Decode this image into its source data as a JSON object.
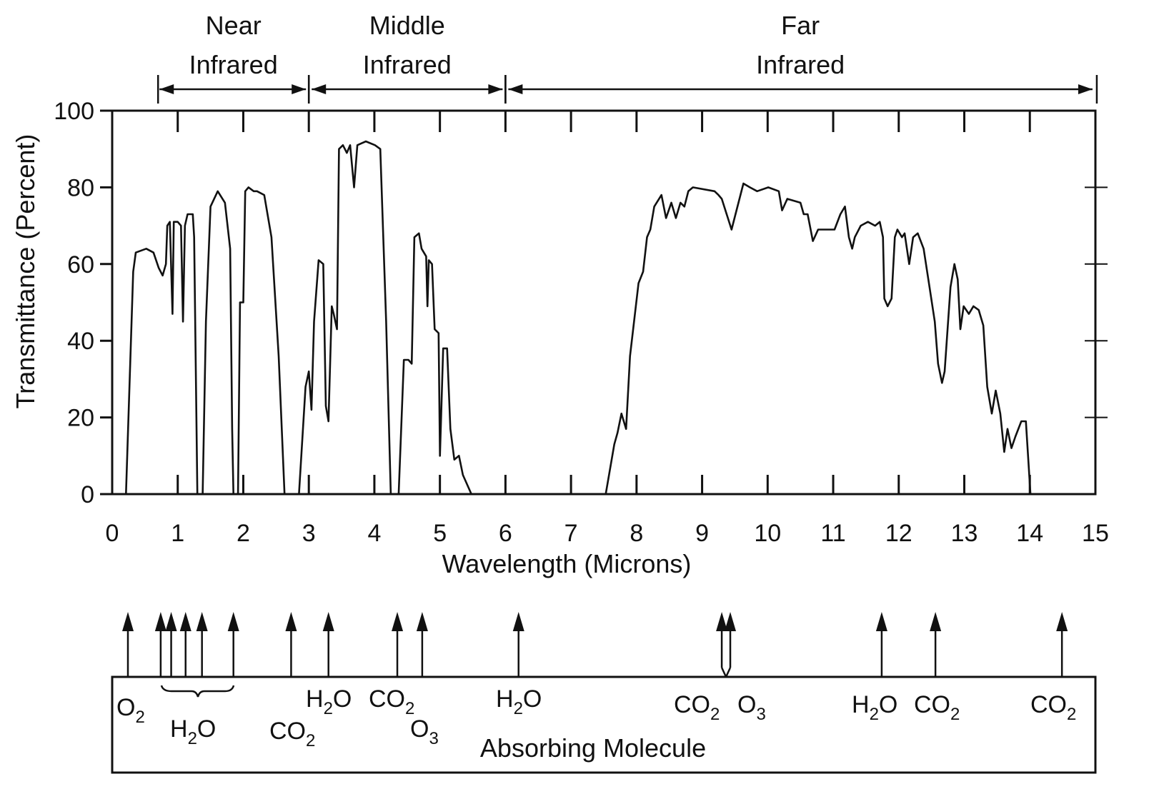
{
  "chart_data": {
    "type": "line",
    "xlabel": "Wavelength (Microns)",
    "ylabel": "Transmittance (Percent)",
    "xlim": [
      0,
      15
    ],
    "ylim": [
      0,
      100
    ],
    "x_ticks": [
      "0",
      "1",
      "2",
      "3",
      "4",
      "5",
      "6",
      "7",
      "8",
      "9",
      "10",
      "11",
      "12",
      "13",
      "14",
      "15"
    ],
    "y_ticks": [
      "0",
      "20",
      "40",
      "60",
      "80",
      "100"
    ],
    "grid": false,
    "regions": [
      {
        "line1": "Near",
        "line2": "Infrared",
        "from": 0.7,
        "to": 3
      },
      {
        "line1": "Middle",
        "line2": "Infrared",
        "from": 3,
        "to": 6
      },
      {
        "line1": "Far",
        "line2": "Infrared",
        "from": 6,
        "to": 15
      }
    ],
    "series": [
      {
        "name": "Transmittance",
        "segments": [
          [
            [
              0.21,
              0
            ],
            [
              0.32,
              58
            ],
            [
              0.36,
              63
            ],
            [
              0.52,
              64
            ],
            [
              0.63,
              63
            ],
            [
              0.71,
              59
            ],
            [
              0.77,
              57
            ],
            [
              0.82,
              60
            ],
            [
              0.84,
              70
            ],
            [
              0.88,
              71
            ],
            [
              0.92,
              47
            ],
            [
              0.94,
              71
            ],
            [
              1.0,
              71
            ],
            [
              1.05,
              70
            ],
            [
              1.08,
              45
            ],
            [
              1.11,
              70
            ],
            [
              1.15,
              73
            ],
            [
              1.23,
              73
            ],
            [
              1.25,
              67
            ],
            [
              1.3,
              0
            ]
          ],
          [
            [
              1.38,
              0
            ],
            [
              1.43,
              45
            ],
            [
              1.5,
              75
            ],
            [
              1.61,
              79
            ],
            [
              1.72,
              76
            ],
            [
              1.8,
              64
            ],
            [
              1.83,
              17
            ],
            [
              1.85,
              0
            ]
          ],
          [
            [
              1.92,
              0
            ],
            [
              1.95,
              50
            ],
            [
              2.0,
              50
            ],
            [
              2.03,
              79
            ],
            [
              2.08,
              80
            ],
            [
              2.16,
              79
            ],
            [
              2.21,
              79
            ],
            [
              2.32,
              78
            ],
            [
              2.43,
              67
            ],
            [
              2.54,
              36
            ],
            [
              2.63,
              0
            ]
          ],
          [
            [
              2.85,
              0
            ],
            [
              2.95,
              28
            ],
            [
              3.0,
              32
            ],
            [
              3.04,
              22
            ],
            [
              3.08,
              45
            ],
            [
              3.15,
              61
            ],
            [
              3.22,
              60
            ],
            [
              3.26,
              23
            ],
            [
              3.3,
              19
            ],
            [
              3.35,
              49
            ],
            [
              3.38,
              47
            ],
            [
              3.43,
              43
            ],
            [
              3.46,
              90
            ],
            [
              3.52,
              91
            ],
            [
              3.58,
              89
            ],
            [
              3.63,
              91
            ],
            [
              3.69,
              80
            ],
            [
              3.74,
              91
            ],
            [
              3.87,
              92
            ],
            [
              4.01,
              91
            ],
            [
              4.09,
              90
            ],
            [
              4.18,
              45
            ],
            [
              4.25,
              0
            ]
          ],
          [
            [
              4.37,
              0
            ],
            [
              4.45,
              35
            ],
            [
              4.52,
              35
            ],
            [
              4.57,
              34
            ],
            [
              4.61,
              67
            ],
            [
              4.68,
              68
            ],
            [
              4.72,
              64
            ],
            [
              4.79,
              62
            ],
            [
              4.81,
              49
            ],
            [
              4.83,
              61
            ],
            [
              4.88,
              60
            ],
            [
              4.92,
              43
            ],
            [
              4.98,
              42
            ],
            [
              5.0,
              10
            ],
            [
              5.05,
              38
            ],
            [
              5.11,
              38
            ],
            [
              5.16,
              17
            ],
            [
              5.22,
              9
            ],
            [
              5.29,
              10
            ],
            [
              5.35,
              5
            ],
            [
              5.48,
              0
            ]
          ],
          [
            [
              7.53,
              0
            ],
            [
              7.66,
              13
            ],
            [
              7.71,
              16
            ],
            [
              7.77,
              21
            ],
            [
              7.84,
              17
            ],
            [
              7.9,
              36
            ],
            [
              8.03,
              55
            ],
            [
              8.1,
              58
            ],
            [
              8.16,
              67
            ],
            [
              8.21,
              69
            ],
            [
              8.27,
              75
            ],
            [
              8.38,
              78
            ],
            [
              8.45,
              72
            ],
            [
              8.53,
              76
            ],
            [
              8.6,
              72
            ],
            [
              8.67,
              76
            ],
            [
              8.73,
              75
            ],
            [
              8.79,
              79
            ],
            [
              8.86,
              80
            ],
            [
              9.19,
              79
            ],
            [
              9.25,
              78
            ],
            [
              9.3,
              77
            ],
            [
              9.45,
              69
            ],
            [
              9.63,
              81
            ],
            [
              9.73,
              80
            ],
            [
              9.84,
              79
            ],
            [
              10.01,
              80
            ],
            [
              10.17,
              79
            ],
            [
              10.22,
              74
            ],
            [
              10.3,
              77
            ],
            [
              10.5,
              76
            ],
            [
              10.55,
              73
            ],
            [
              10.61,
              73
            ],
            [
              10.69,
              66
            ],
            [
              10.77,
              69
            ],
            [
              10.93,
              69
            ],
            [
              11.02,
              69
            ],
            [
              11.11,
              73
            ],
            [
              11.18,
              75
            ],
            [
              11.24,
              67
            ],
            [
              11.29,
              64
            ],
            [
              11.33,
              67
            ],
            [
              11.42,
              70
            ],
            [
              11.53,
              71
            ],
            [
              11.64,
              70
            ],
            [
              11.71,
              71
            ],
            [
              11.76,
              67
            ],
            [
              11.78,
              51
            ],
            [
              11.83,
              49
            ],
            [
              11.89,
              51
            ],
            [
              11.94,
              67
            ],
            [
              11.98,
              69
            ],
            [
              12.05,
              67
            ],
            [
              12.09,
              68
            ],
            [
              12.16,
              60
            ],
            [
              12.22,
              67
            ],
            [
              12.29,
              68
            ],
            [
              12.38,
              64
            ],
            [
              12.46,
              55
            ],
            [
              12.55,
              45
            ],
            [
              12.6,
              34
            ],
            [
              12.66,
              29
            ],
            [
              12.7,
              32
            ],
            [
              12.79,
              54
            ],
            [
              12.85,
              60
            ],
            [
              12.9,
              56
            ],
            [
              12.94,
              43
            ],
            [
              12.99,
              49
            ],
            [
              13.07,
              47
            ],
            [
              13.14,
              49
            ],
            [
              13.22,
              48
            ],
            [
              13.29,
              44
            ],
            [
              13.35,
              28
            ],
            [
              13.42,
              21
            ],
            [
              13.48,
              27
            ],
            [
              13.55,
              21
            ],
            [
              13.61,
              11
            ],
            [
              13.66,
              17
            ],
            [
              13.72,
              12
            ],
            [
              13.78,
              15
            ],
            [
              13.87,
              19
            ],
            [
              13.94,
              19
            ],
            [
              14.01,
              0
            ]
          ]
        ]
      }
    ],
    "absorbing_title": "Absorbing Molecule",
    "absorption_arrows_microns": [
      0.24,
      0.74,
      0.9,
      1.12,
      1.37,
      1.85,
      2.73,
      3.3,
      4.35,
      4.73,
      6.2,
      9.3,
      9.43,
      11.74,
      12.56,
      14.49
    ],
    "molecules": [
      {
        "base": "O",
        "sub": "2"
      },
      {
        "base": "H",
        "sub": "2",
        "tail": "O"
      },
      {
        "base": "CO",
        "sub": "2"
      },
      {
        "base": "H",
        "sub": "2",
        "tail": "O"
      },
      {
        "base": "CO",
        "sub": "2"
      },
      {
        "base": "O",
        "sub": "3"
      },
      {
        "base": "H",
        "sub": "2",
        "tail": "O"
      },
      {
        "base": "CO",
        "sub": "2"
      },
      {
        "base": "O",
        "sub": "3"
      },
      {
        "base": "H",
        "sub": "2",
        "tail": "O"
      },
      {
        "base": "CO",
        "sub": "2"
      },
      {
        "base": "CO",
        "sub": "2"
      }
    ]
  }
}
